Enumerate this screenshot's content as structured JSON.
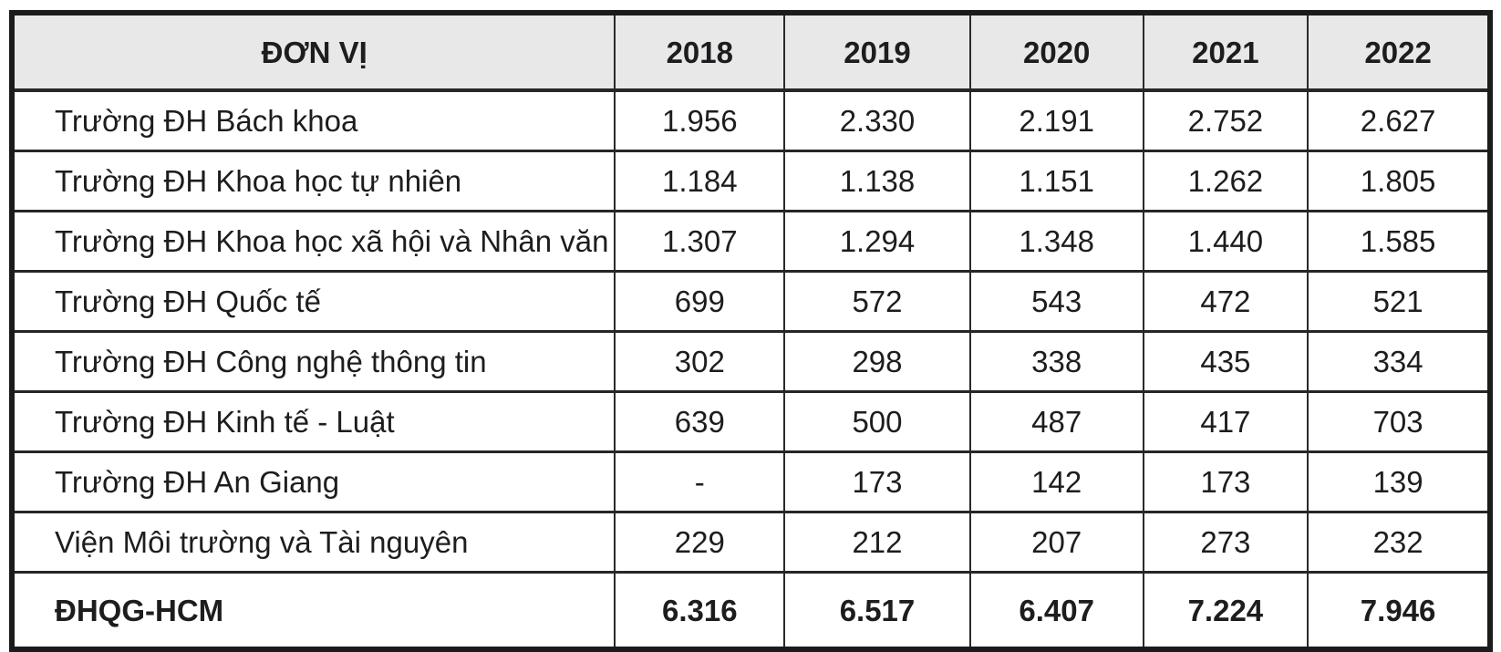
{
  "colors": {
    "header_bg": "#e8e8e9",
    "border": "#262626",
    "text": "#1d1d1f"
  },
  "table": {
    "header": {
      "unit_label": "ĐƠN VỊ",
      "years": [
        "2018",
        "2019",
        "2020",
        "2021",
        "2022"
      ]
    },
    "rows": [
      {
        "label": "Trường ĐH Bách khoa",
        "values": [
          "1.956",
          "2.330",
          "2.191",
          "2.752",
          "2.627"
        ]
      },
      {
        "label": "Trường ĐH Khoa học tự nhiên",
        "values": [
          "1.184",
          "1.138",
          "1.151",
          "1.262",
          "1.805"
        ]
      },
      {
        "label": "Trường ĐH Khoa học xã hội và Nhân văn",
        "values": [
          "1.307",
          "1.294",
          "1.348",
          "1.440",
          "1.585"
        ]
      },
      {
        "label": "Trường ĐH Quốc tế",
        "values": [
          "699",
          "572",
          "543",
          "472",
          "521"
        ]
      },
      {
        "label": "Trường ĐH Công nghệ thông tin",
        "values": [
          "302",
          "298",
          "338",
          "435",
          "334"
        ]
      },
      {
        "label": "Trường ĐH Kinh tế - Luật",
        "values": [
          "639",
          "500",
          "487",
          "417",
          "703"
        ]
      },
      {
        "label": "Trường ĐH An Giang",
        "values": [
          "-",
          "173",
          "142",
          "173",
          "139"
        ]
      },
      {
        "label": "Viện Môi trường và Tài nguyên",
        "values": [
          "229",
          "212",
          "207",
          "273",
          "232"
        ]
      },
      {
        "label": "ĐHQG-HCM",
        "values": [
          "6.316",
          "6.517",
          "6.407",
          "7.224",
          "7.946"
        ]
      }
    ]
  },
  "chart_data": {
    "type": "table",
    "title": "",
    "categories": [
      "2018",
      "2019",
      "2020",
      "2021",
      "2022"
    ],
    "series": [
      {
        "name": "Trường ĐH Bách khoa",
        "values": [
          1956,
          2330,
          2191,
          2752,
          2627
        ]
      },
      {
        "name": "Trường ĐH Khoa học tự nhiên",
        "values": [
          1184,
          1138,
          1151,
          1262,
          1805
        ]
      },
      {
        "name": "Trường ĐH Khoa học xã hội và Nhân văn",
        "values": [
          1307,
          1294,
          1348,
          1440,
          1585
        ]
      },
      {
        "name": "Trường ĐH Quốc tế",
        "values": [
          699,
          572,
          543,
          472,
          521
        ]
      },
      {
        "name": "Trường ĐH Công nghệ thông tin",
        "values": [
          302,
          298,
          338,
          435,
          334
        ]
      },
      {
        "name": "Trường ĐH Kinh tế - Luật",
        "values": [
          639,
          500,
          487,
          417,
          703
        ]
      },
      {
        "name": "Trường ĐH An Giang",
        "values": [
          null,
          173,
          142,
          173,
          139
        ]
      },
      {
        "name": "Viện Môi trường và Tài nguyên",
        "values": [
          229,
          212,
          207,
          273,
          232
        ]
      },
      {
        "name": "ĐHQG-HCM",
        "values": [
          6316,
          6517,
          6407,
          7224,
          7946
        ]
      }
    ]
  }
}
